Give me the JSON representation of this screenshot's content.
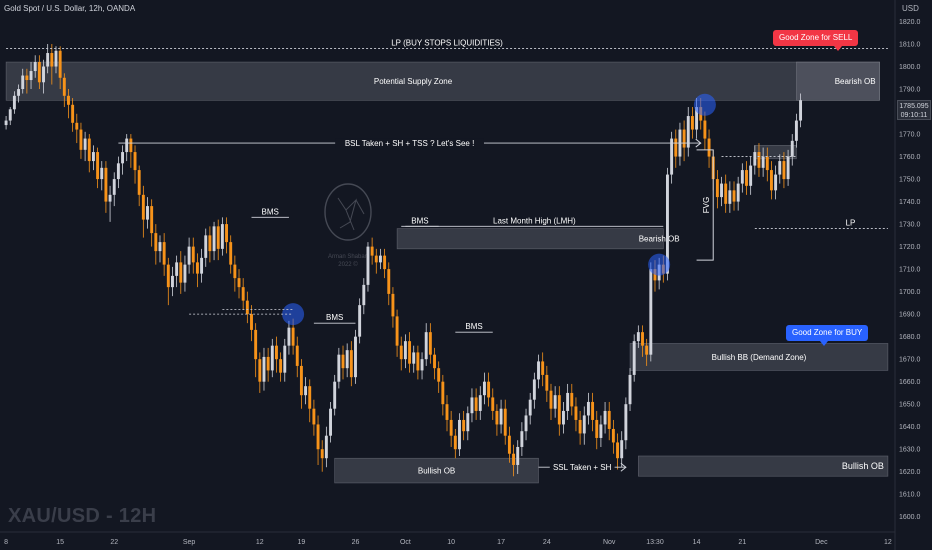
{
  "header": {
    "symbol_line": "Gold Spot / U.S. Dollar, 12h, OANDA",
    "currency": "USD"
  },
  "watermark": "XAU/USD - 12H",
  "price_tag": {
    "price": "1785.095",
    "countdown": "09:10:11"
  },
  "callouts": {
    "sell": "Good Zone for SELL",
    "buy": "Good Zone for BUY"
  },
  "logo": {
    "name": "Arman Shaban",
    "year": "2022 ©"
  },
  "chart_data": {
    "type": "candlestick",
    "title": "",
    "y_axis": {
      "min": 1595,
      "max": 1826,
      "ticks": [
        1600,
        1610,
        1620,
        1630,
        1640,
        1650,
        1660,
        1670,
        1680,
        1690,
        1700,
        1710,
        1720,
        1730,
        1740,
        1750,
        1760,
        1770,
        1780,
        1790,
        1800,
        1810,
        1820
      ],
      "position": "right"
    },
    "x_axis": {
      "labels": [
        {
          "t": 0,
          "label": "8"
        },
        {
          "t": 13,
          "label": "15"
        },
        {
          "t": 26,
          "label": "22"
        },
        {
          "t": 44,
          "label": "Sep"
        },
        {
          "t": 61,
          "label": "12"
        },
        {
          "t": 71,
          "label": "19"
        },
        {
          "t": 84,
          "label": "26"
        },
        {
          "t": 96,
          "label": "Oct"
        },
        {
          "t": 107,
          "label": "10"
        },
        {
          "t": 119,
          "label": "17"
        },
        {
          "t": 130,
          "label": "24"
        },
        {
          "t": 145,
          "label": "Nov"
        },
        {
          "t": 156,
          "label": "13:30"
        },
        {
          "t": 166,
          "label": "14"
        },
        {
          "t": 177,
          "label": "21"
        },
        {
          "t": 196,
          "label": "Dec"
        },
        {
          "t": 212,
          "label": "12"
        }
      ]
    },
    "candles": [
      [
        1774,
        1776,
        1778,
        1772
      ],
      [
        1776,
        1781,
        1782,
        1774
      ],
      [
        1781,
        1787,
        1789,
        1779
      ],
      [
        1787,
        1790,
        1792,
        1784
      ],
      [
        1790,
        1796,
        1799,
        1788
      ],
      [
        1796,
        1794,
        1799,
        1788
      ],
      [
        1794,
        1798,
        1802,
        1790
      ],
      [
        1798,
        1802,
        1805,
        1795
      ],
      [
        1802,
        1793,
        1805,
        1790
      ],
      [
        1793,
        1800,
        1803,
        1788
      ],
      [
        1800,
        1806,
        1810,
        1797
      ],
      [
        1806,
        1800,
        1810,
        1792
      ],
      [
        1800,
        1807,
        1809,
        1797
      ],
      [
        1807,
        1795,
        1809,
        1790
      ],
      [
        1795,
        1787,
        1797,
        1782
      ],
      [
        1787,
        1783,
        1790,
        1777
      ],
      [
        1783,
        1775,
        1786,
        1771
      ],
      [
        1775,
        1772,
        1779,
        1766
      ],
      [
        1772,
        1763,
        1775,
        1759
      ],
      [
        1763,
        1768,
        1771,
        1758
      ],
      [
        1768,
        1758,
        1770,
        1753
      ],
      [
        1758,
        1762,
        1765,
        1754
      ],
      [
        1762,
        1750,
        1764,
        1746
      ],
      [
        1750,
        1755,
        1758,
        1745
      ],
      [
        1755,
        1740,
        1758,
        1735
      ],
      [
        1740,
        1743,
        1747,
        1731
      ],
      [
        1743,
        1750,
        1753,
        1738
      ],
      [
        1750,
        1757,
        1760,
        1746
      ],
      [
        1757,
        1762,
        1765,
        1752
      ],
      [
        1762,
        1768,
        1770,
        1758
      ],
      [
        1768,
        1762,
        1770,
        1755
      ],
      [
        1762,
        1754,
        1765,
        1748
      ],
      [
        1754,
        1743,
        1756,
        1738
      ],
      [
        1743,
        1732,
        1747,
        1724
      ],
      [
        1732,
        1738,
        1742,
        1728
      ],
      [
        1738,
        1726,
        1741,
        1720
      ],
      [
        1726,
        1718,
        1730,
        1712
      ],
      [
        1718,
        1722,
        1725,
        1713
      ],
      [
        1722,
        1712,
        1726,
        1707
      ],
      [
        1712,
        1702,
        1715,
        1694
      ],
      [
        1702,
        1707,
        1711,
        1698
      ],
      [
        1707,
        1713,
        1716,
        1702
      ],
      [
        1713,
        1704,
        1718,
        1699
      ],
      [
        1704,
        1712,
        1716,
        1700
      ],
      [
        1712,
        1720,
        1724,
        1708
      ],
      [
        1720,
        1713,
        1724,
        1708
      ],
      [
        1713,
        1708,
        1717,
        1702
      ],
      [
        1708,
        1715,
        1719,
        1704
      ],
      [
        1715,
        1725,
        1728,
        1711
      ],
      [
        1725,
        1718,
        1729,
        1713
      ],
      [
        1718,
        1729,
        1731,
        1714
      ],
      [
        1729,
        1719,
        1732,
        1714
      ],
      [
        1719,
        1730,
        1733,
        1716
      ],
      [
        1730,
        1722,
        1733,
        1717
      ],
      [
        1722,
        1712,
        1725,
        1708
      ],
      [
        1712,
        1706,
        1716,
        1700
      ],
      [
        1706,
        1702,
        1710,
        1697
      ],
      [
        1702,
        1696,
        1706,
        1692
      ],
      [
        1696,
        1690,
        1700,
        1686
      ],
      [
        1690,
        1683,
        1694,
        1678
      ],
      [
        1683,
        1670,
        1686,
        1662
      ],
      [
        1670,
        1660,
        1673,
        1655
      ],
      [
        1660,
        1671,
        1675,
        1656
      ],
      [
        1671,
        1665,
        1675,
        1660
      ],
      [
        1665,
        1676,
        1679,
        1662
      ],
      [
        1676,
        1670,
        1680,
        1664
      ],
      [
        1670,
        1664,
        1673,
        1660
      ],
      [
        1664,
        1676,
        1679,
        1660
      ],
      [
        1676,
        1684,
        1687,
        1672
      ],
      [
        1684,
        1676,
        1688,
        1672
      ],
      [
        1676,
        1667,
        1680,
        1662
      ],
      [
        1667,
        1654,
        1670,
        1648
      ],
      [
        1654,
        1658,
        1662,
        1650
      ],
      [
        1658,
        1648,
        1661,
        1642
      ],
      [
        1648,
        1641,
        1652,
        1636
      ],
      [
        1641,
        1630,
        1645,
        1623
      ],
      [
        1630,
        1626,
        1634,
        1620
      ],
      [
        1626,
        1636,
        1640,
        1622
      ],
      [
        1636,
        1648,
        1651,
        1633
      ],
      [
        1648,
        1660,
        1663,
        1645
      ],
      [
        1660,
        1672,
        1675,
        1657
      ],
      [
        1672,
        1666,
        1676,
        1661
      ],
      [
        1666,
        1674,
        1677,
        1662
      ],
      [
        1674,
        1662,
        1678,
        1658
      ],
      [
        1662,
        1680,
        1683,
        1659
      ],
      [
        1680,
        1694,
        1697,
        1677
      ],
      [
        1694,
        1703,
        1706,
        1690
      ],
      [
        1703,
        1720,
        1722,
        1700
      ],
      [
        1720,
        1716,
        1724,
        1712
      ],
      [
        1716,
        1713,
        1719,
        1708
      ],
      [
        1713,
        1716,
        1719,
        1710
      ],
      [
        1716,
        1710,
        1719,
        1706
      ],
      [
        1710,
        1699,
        1713,
        1694
      ],
      [
        1699,
        1689,
        1702,
        1684
      ],
      [
        1689,
        1676,
        1692,
        1671
      ],
      [
        1676,
        1670,
        1680,
        1665
      ],
      [
        1670,
        1678,
        1681,
        1666
      ],
      [
        1678,
        1668,
        1682,
        1664
      ],
      [
        1668,
        1673,
        1676,
        1664
      ],
      [
        1673,
        1665,
        1676,
        1661
      ],
      [
        1665,
        1670,
        1673,
        1661
      ],
      [
        1670,
        1682,
        1686,
        1667
      ],
      [
        1682,
        1672,
        1686,
        1668
      ],
      [
        1672,
        1666,
        1675,
        1661
      ],
      [
        1666,
        1660,
        1669,
        1655
      ],
      [
        1660,
        1650,
        1663,
        1645
      ],
      [
        1650,
        1643,
        1654,
        1638
      ],
      [
        1643,
        1636,
        1647,
        1631
      ],
      [
        1636,
        1630,
        1639,
        1626
      ],
      [
        1630,
        1643,
        1646,
        1627
      ],
      [
        1643,
        1638,
        1647,
        1634
      ],
      [
        1638,
        1646,
        1649,
        1634
      ],
      [
        1646,
        1653,
        1657,
        1642
      ],
      [
        1653,
        1647,
        1657,
        1643
      ],
      [
        1647,
        1654,
        1658,
        1643
      ],
      [
        1654,
        1660,
        1664,
        1650
      ],
      [
        1660,
        1653,
        1664,
        1649
      ],
      [
        1653,
        1647,
        1657,
        1643
      ],
      [
        1647,
        1641,
        1650,
        1636
      ],
      [
        1641,
        1648,
        1652,
        1637
      ],
      [
        1648,
        1636,
        1652,
        1632
      ],
      [
        1636,
        1628,
        1640,
        1624
      ],
      [
        1628,
        1623,
        1632,
        1618
      ],
      [
        1623,
        1631,
        1634,
        1619
      ],
      [
        1631,
        1638,
        1642,
        1627
      ],
      [
        1638,
        1645,
        1648,
        1634
      ],
      [
        1645,
        1652,
        1655,
        1641
      ],
      [
        1652,
        1661,
        1664,
        1648
      ],
      [
        1661,
        1669,
        1672,
        1657
      ],
      [
        1669,
        1663,
        1673,
        1658
      ],
      [
        1663,
        1656,
        1667,
        1651
      ],
      [
        1656,
        1648,
        1659,
        1643
      ],
      [
        1648,
        1654,
        1658,
        1644
      ],
      [
        1654,
        1641,
        1658,
        1636
      ],
      [
        1641,
        1647,
        1651,
        1637
      ],
      [
        1647,
        1655,
        1659,
        1643
      ],
      [
        1655,
        1649,
        1659,
        1645
      ],
      [
        1649,
        1643,
        1653,
        1638
      ],
      [
        1643,
        1637,
        1647,
        1632
      ],
      [
        1637,
        1645,
        1649,
        1632
      ],
      [
        1645,
        1651,
        1655,
        1641
      ],
      [
        1651,
        1643,
        1655,
        1638
      ],
      [
        1643,
        1635,
        1647,
        1630
      ],
      [
        1635,
        1641,
        1645,
        1631
      ],
      [
        1641,
        1647,
        1651,
        1637
      ],
      [
        1647,
        1639,
        1651,
        1634
      ],
      [
        1639,
        1633,
        1643,
        1628
      ],
      [
        1633,
        1626,
        1637,
        1621
      ],
      [
        1626,
        1634,
        1638,
        1622
      ],
      [
        1634,
        1650,
        1653,
        1630
      ],
      [
        1650,
        1663,
        1666,
        1647
      ],
      [
        1663,
        1678,
        1681,
        1660
      ],
      [
        1678,
        1682,
        1685,
        1675
      ],
      [
        1682,
        1676,
        1685,
        1671
      ],
      [
        1676,
        1672,
        1679,
        1667
      ],
      [
        1672,
        1710,
        1713,
        1669
      ],
      [
        1710,
        1705,
        1714,
        1700
      ],
      [
        1705,
        1712,
        1715,
        1701
      ],
      [
        1712,
        1708,
        1716,
        1704
      ],
      [
        1708,
        1752,
        1755,
        1705
      ],
      [
        1752,
        1768,
        1771,
        1748
      ],
      [
        1768,
        1760,
        1772,
        1755
      ],
      [
        1760,
        1772,
        1775,
        1756
      ],
      [
        1772,
        1764,
        1776,
        1758
      ],
      [
        1764,
        1778,
        1782,
        1760
      ],
      [
        1778,
        1772,
        1782,
        1768
      ],
      [
        1772,
        1782,
        1786,
        1768
      ],
      [
        1782,
        1776,
        1786,
        1772
      ],
      [
        1776,
        1768,
        1780,
        1763
      ],
      [
        1768,
        1760,
        1772,
        1755
      ],
      [
        1760,
        1750,
        1763,
        1745
      ],
      [
        1750,
        1742,
        1754,
        1737
      ],
      [
        1742,
        1748,
        1751,
        1738
      ],
      [
        1748,
        1739,
        1752,
        1735
      ],
      [
        1739,
        1745,
        1749,
        1735
      ],
      [
        1745,
        1740,
        1749,
        1736
      ],
      [
        1740,
        1748,
        1751,
        1736
      ],
      [
        1748,
        1754,
        1757,
        1744
      ],
      [
        1754,
        1747,
        1758,
        1743
      ],
      [
        1747,
        1756,
        1760,
        1743
      ],
      [
        1756,
        1762,
        1765,
        1752
      ],
      [
        1762,
        1755,
        1766,
        1751
      ],
      [
        1755,
        1760,
        1764,
        1751
      ],
      [
        1760,
        1754,
        1764,
        1749
      ],
      [
        1754,
        1745,
        1758,
        1741
      ],
      [
        1745,
        1752,
        1756,
        1741
      ],
      [
        1752,
        1758,
        1761,
        1748
      ],
      [
        1758,
        1750,
        1762,
        1746
      ],
      [
        1750,
        1760,
        1763,
        1747
      ],
      [
        1760,
        1767,
        1770,
        1756
      ],
      [
        1767,
        1776,
        1779,
        1764
      ],
      [
        1776,
        1785,
        1788,
        1773
      ]
    ],
    "zones": [
      {
        "label": "Potential Supply Zone",
        "t0": 0,
        "t1": 210,
        "top": 1802,
        "bottom": 1785
      },
      {
        "label": "Bearish OB",
        "t0": 190,
        "t1": 210,
        "top": 1802,
        "bottom": 1785
      },
      {
        "label": "Bullish OB",
        "t0": 79,
        "t1": 128,
        "top": 1626,
        "bottom": 1615
      },
      {
        "label": "Bullish OB",
        "t0": 152,
        "t1": 212,
        "top": 1627,
        "bottom": 1618
      },
      {
        "label": "Bearish OB",
        "t0": 94,
        "t1": 158,
        "top": 1728,
        "bottom": 1719
      },
      {
        "label": "Bullish BB (Demand Zone)",
        "t0": 150,
        "t1": 212,
        "top": 1677,
        "bottom": 1665
      },
      {
        "label": "",
        "t0": 180,
        "t1": 190,
        "top": 1765,
        "bottom": 1759
      }
    ],
    "annotations": [
      {
        "text": "LP (BUY STOPS LIQUIDITIES)",
        "t0": 0,
        "t1": 212,
        "y": 1808,
        "style": "dotted"
      },
      {
        "text": "BSL Taken + SH + TSS ? Let's See !",
        "t0": 27,
        "t1": 167,
        "y": 1766,
        "style": "arrow"
      },
      {
        "text": "Last Month High (LMH)",
        "t0": 96,
        "t1": 158,
        "y": 1729,
        "style": "solid"
      },
      {
        "text": "LP",
        "t0": 180,
        "t1": 212,
        "y": 1728,
        "style": "dotted"
      },
      {
        "text": "SSL Taken + SH",
        "t0": 128,
        "t1": 149,
        "y": 1622,
        "style": "arrow"
      },
      {
        "text": "FVG",
        "t0": 166,
        "t1": 170,
        "y": 1730,
        "style": "bracket"
      },
      {
        "text": "BMS",
        "t0": 59,
        "t1": 68,
        "y": 1733,
        "style": "solid"
      },
      {
        "text": "BMS",
        "t0": 74,
        "t1": 84,
        "y": 1686,
        "style": "solid"
      },
      {
        "text": "BMS",
        "t0": 108,
        "t1": 117,
        "y": 1682,
        "style": "solid"
      },
      {
        "text": "BMS",
        "t0": 95,
        "t1": 104,
        "y": 1729,
        "style": "solid"
      }
    ],
    "highlight_circles": [
      {
        "t": 69,
        "y": 1690
      },
      {
        "t": 157,
        "y": 1712
      },
      {
        "t": 168,
        "y": 1783
      }
    ]
  }
}
